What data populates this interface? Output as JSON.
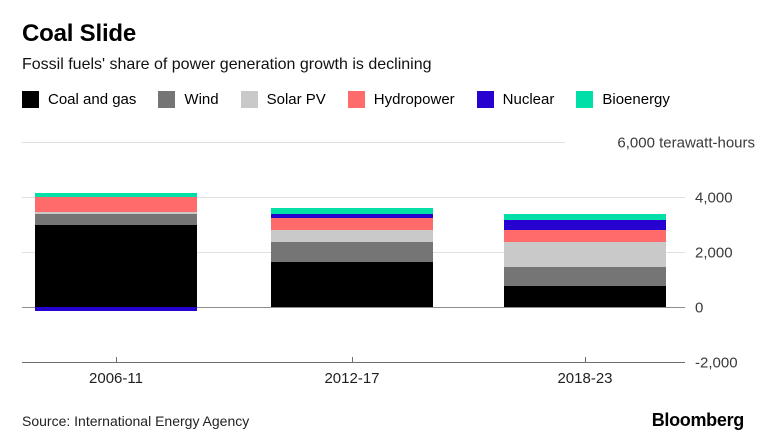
{
  "header": {
    "title": "Coal Slide",
    "subtitle": "Fossil fuels' share of power generation growth is declining"
  },
  "chart_data": {
    "type": "bar",
    "stacked": true,
    "title": "Coal Slide",
    "subtitle": "Fossil fuels' share of power generation growth is declining",
    "unit": "terawatt-hours",
    "categories": [
      "2006-11",
      "2012-17",
      "2018-23"
    ],
    "series": [
      {
        "name": "Coal and gas",
        "color": "#000000",
        "values": [
          3000,
          1650,
          750
        ]
      },
      {
        "name": "Wind",
        "color": "#757575",
        "values": [
          400,
          700,
          700
        ]
      },
      {
        "name": "Solar PV",
        "color": "#c9c9c9",
        "values": [
          50,
          450,
          900
        ]
      },
      {
        "name": "Hydropower",
        "color": "#ff6b6b",
        "values": [
          550,
          450,
          450
        ]
      },
      {
        "name": "Nuclear",
        "color": "#2601d0",
        "values": [
          -150,
          120,
          350
        ]
      },
      {
        "name": "Bioenergy",
        "color": "#00dfa8",
        "values": [
          150,
          220,
          250
        ]
      }
    ],
    "y_ticks": [
      {
        "value": 6000,
        "label": "6,000 terawatt-hours"
      },
      {
        "value": 4000,
        "label": "4,000"
      },
      {
        "value": 2000,
        "label": "2,000"
      },
      {
        "value": 0,
        "label": "0"
      },
      {
        "value": -2000,
        "label": "-2,000"
      }
    ],
    "ylim": [
      -2000,
      6000
    ],
    "grid": "horizontal",
    "legend_position": "top",
    "colors": {
      "gridline": "#e0e0e0",
      "zero_line": "#8c8c8c",
      "axis_line": "#6e6e6e"
    }
  },
  "footer": {
    "source": "Source: International Energy Agency",
    "brand": "Bloomberg"
  }
}
